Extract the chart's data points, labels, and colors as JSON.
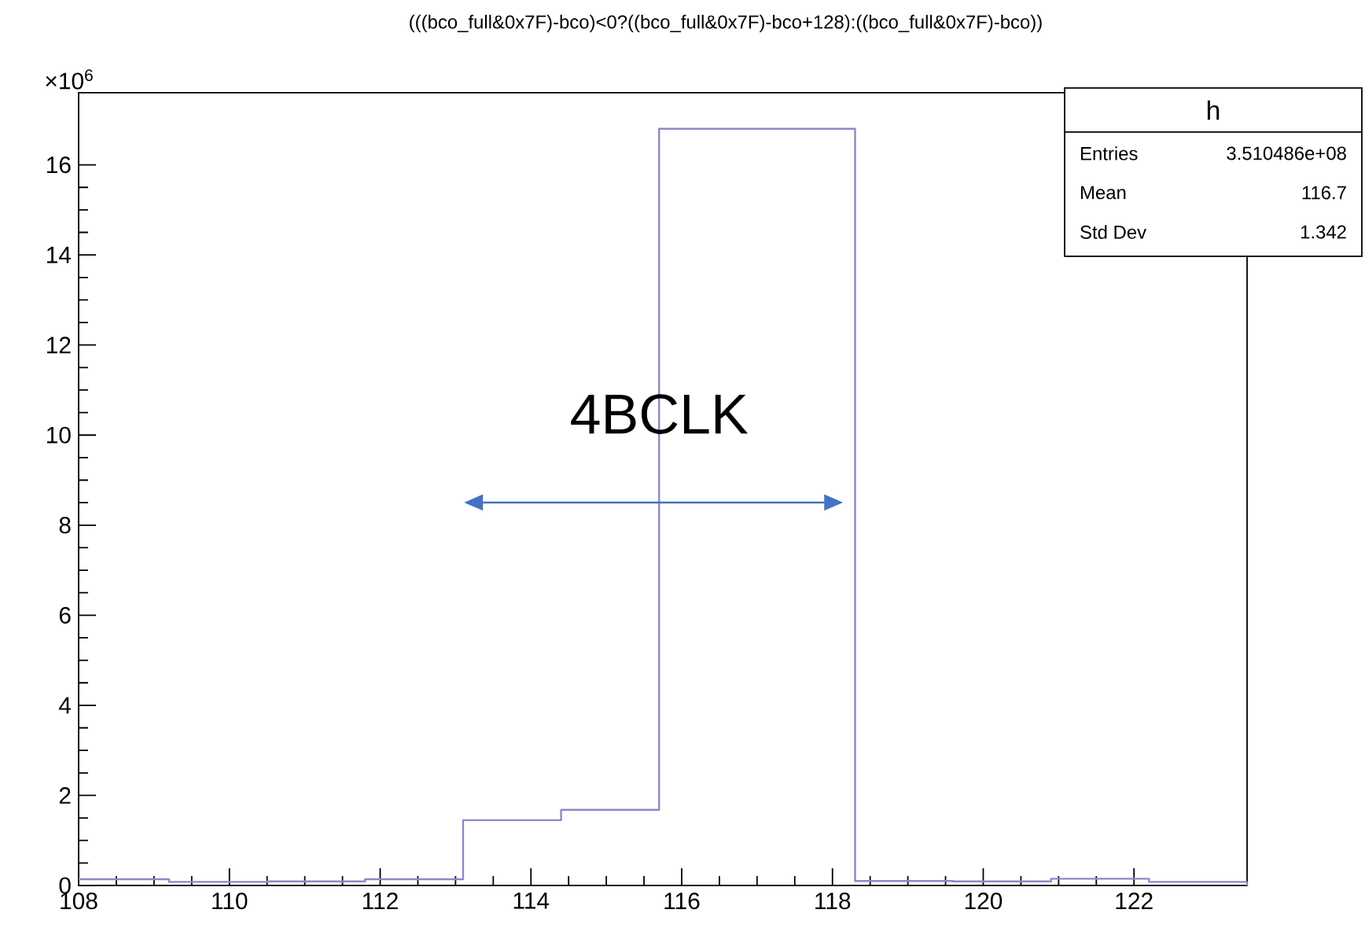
{
  "chart_data": {
    "type": "histogram",
    "title": "(((bco_full&0x7F)-bco)<0?((bco_full&0x7F)-bco+128):((bco_full&0x7F)-bco))",
    "bins": [
      108,
      109.2,
      110.5,
      111.8,
      113.1,
      114.4,
      115.7,
      117.0,
      118.3,
      119.6,
      120.9,
      122.2,
      123.5
    ],
    "values": [
      0.14,
      0.08,
      0.09,
      0.14,
      1.45,
      1.68,
      16.8,
      16.8,
      0.1,
      0.09,
      0.15,
      0.08
    ],
    "color": "#8a8ac6",
    "xlim": [
      108,
      123.5
    ],
    "ylim": [
      0,
      17.6
    ],
    "xticks": [
      108,
      110,
      112,
      114,
      116,
      118,
      120,
      122
    ],
    "yticks": [
      0,
      2,
      4,
      6,
      8,
      10,
      12,
      14,
      16
    ],
    "annotations": [
      "×10$^{6}$",
      {
        "text": "4BCLK",
        "x": 115.7,
        "y": 9.9
      },
      "h",
      "Entries",
      "3.510486e+08",
      "Mean",
      "116.7",
      "Std Dev",
      "1.342"
    ]
  }
}
